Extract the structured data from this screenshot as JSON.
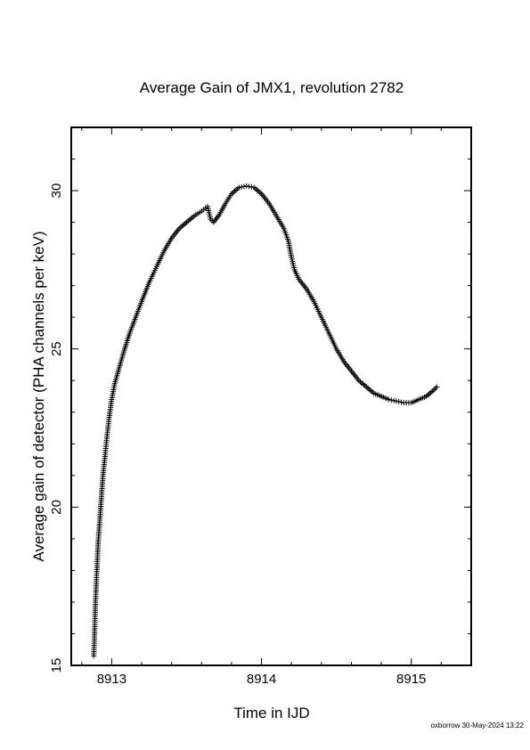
{
  "chart_data": {
    "type": "scatter",
    "title": "Average Gain of JMX1, revolution 2782",
    "xlabel": "Time in IJD",
    "ylabel": "Average gain of detector (PHA channels per keV)",
    "xlim": [
      8912.73,
      8915.4
    ],
    "ylim": [
      15,
      32
    ],
    "xticks": [
      8913,
      8914,
      8915
    ],
    "yticks": [
      15,
      20,
      25,
      30
    ],
    "marker": "plus",
    "grid": false,
    "series": [
      {
        "color": "#000000",
        "points": [
          [
            8912.88,
            15.3
          ],
          [
            8912.885,
            15.9
          ],
          [
            8912.89,
            16.8
          ],
          [
            8912.9,
            17.9
          ],
          [
            8912.91,
            18.9
          ],
          [
            8912.925,
            19.9
          ],
          [
            8912.94,
            20.9
          ],
          [
            8912.955,
            21.6
          ],
          [
            8912.97,
            22.3
          ],
          [
            8912.985,
            22.9
          ],
          [
            8913.0,
            23.4
          ],
          [
            8913.02,
            23.9
          ],
          [
            8913.05,
            24.4
          ],
          [
            8913.08,
            24.9
          ],
          [
            8913.12,
            25.5
          ],
          [
            8913.16,
            26.0
          ],
          [
            8913.2,
            26.5
          ],
          [
            8913.25,
            27.1
          ],
          [
            8913.3,
            27.6
          ],
          [
            8913.35,
            28.1
          ],
          [
            8913.4,
            28.5
          ],
          [
            8913.45,
            28.8
          ],
          [
            8913.5,
            29.0
          ],
          [
            8913.55,
            29.2
          ],
          [
            8913.6,
            29.35
          ],
          [
            8913.64,
            29.5
          ],
          [
            8913.66,
            29.1
          ],
          [
            8913.68,
            29.0
          ],
          [
            8913.72,
            29.25
          ],
          [
            8913.76,
            29.6
          ],
          [
            8913.8,
            29.9
          ],
          [
            8913.85,
            30.1
          ],
          [
            8913.9,
            30.15
          ],
          [
            8913.95,
            30.1
          ],
          [
            8914.0,
            29.9
          ],
          [
            8914.05,
            29.6
          ],
          [
            8914.1,
            29.2
          ],
          [
            8914.15,
            28.8
          ],
          [
            8914.18,
            28.4
          ],
          [
            8914.2,
            27.9
          ],
          [
            8914.22,
            27.5
          ],
          [
            8914.25,
            27.2
          ],
          [
            8914.3,
            26.9
          ],
          [
            8914.35,
            26.5
          ],
          [
            8914.4,
            26.0
          ],
          [
            8914.45,
            25.5
          ],
          [
            8914.5,
            25.0
          ],
          [
            8914.55,
            24.6
          ],
          [
            8914.6,
            24.3
          ],
          [
            8914.65,
            24.0
          ],
          [
            8914.7,
            23.8
          ],
          [
            8914.75,
            23.6
          ],
          [
            8914.8,
            23.5
          ],
          [
            8914.85,
            23.4
          ],
          [
            8914.9,
            23.35
          ],
          [
            8914.95,
            23.3
          ],
          [
            8915.0,
            23.3
          ],
          [
            8915.05,
            23.4
          ],
          [
            8915.1,
            23.5
          ],
          [
            8915.15,
            23.7
          ],
          [
            8915.17,
            23.8
          ]
        ]
      }
    ]
  },
  "footer": "oxborrow 30-May-2024 13:22"
}
